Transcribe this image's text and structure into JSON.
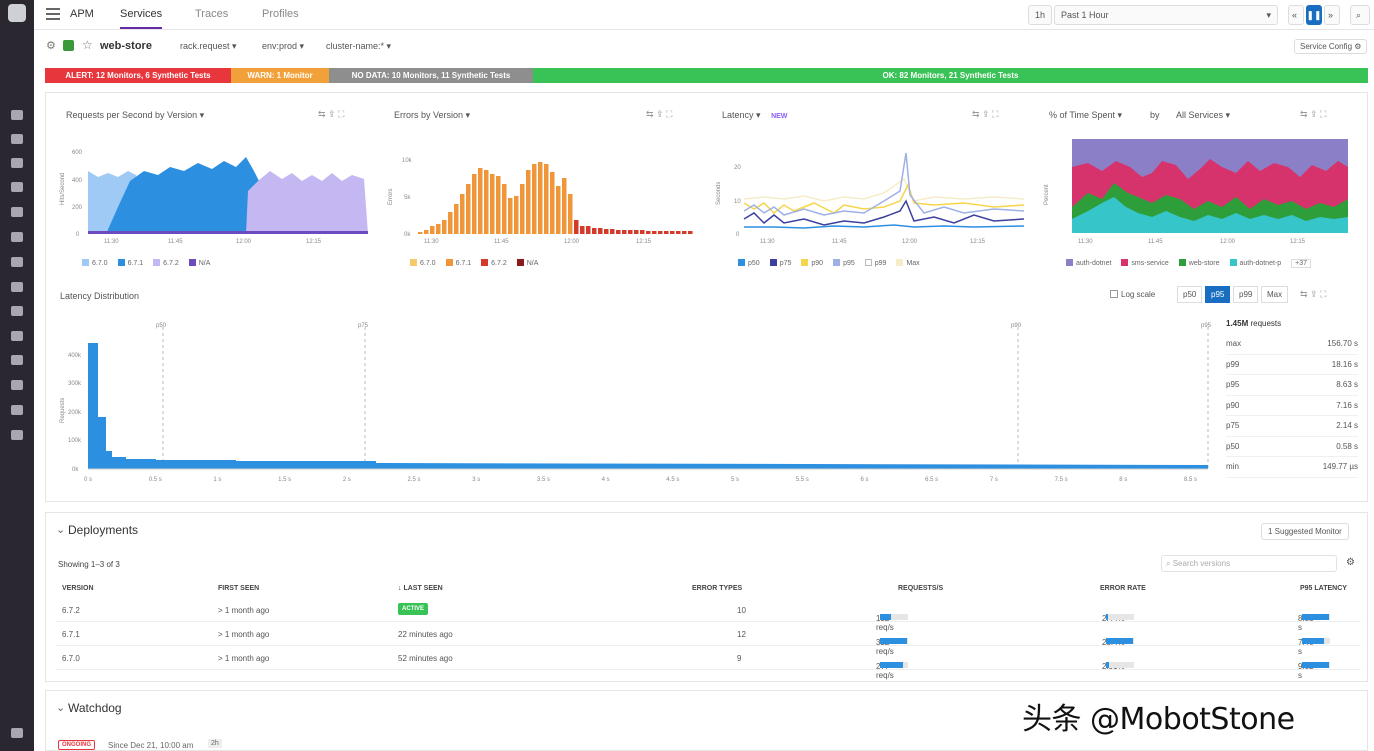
{
  "topbar": {
    "product": "APM",
    "tabs": [
      "Services",
      "Traces",
      "Profiles"
    ],
    "time_short": "1h",
    "time_range": "Past 1 Hour"
  },
  "service": {
    "name": "web-store",
    "filters": [
      "rack.request",
      "env:prod",
      "cluster-name:*"
    ],
    "config_label": "Service Config"
  },
  "status": {
    "alert": "ALERT: 12 Monitors, 6 Synthetic Tests",
    "warn": "WARN: 1 Monitor",
    "nodata": "NO DATA: 10 Monitors, 11 Synthetic Tests",
    "ok": "OK: 82 Monitors, 21 Synthetic Tests",
    "colors": {
      "alert": "#e8363d",
      "warn": "#f2a13a",
      "nodata": "#8e8e8e",
      "ok": "#39c255"
    }
  },
  "charts": {
    "c1": {
      "title": "Requests per Second by Version",
      "ylabel": "Hits/Second",
      "yticks": [
        "600",
        "400",
        "200",
        "0"
      ],
      "xticks": [
        "11:30",
        "11:45",
        "12:00",
        "12:15"
      ],
      "legend": [
        "6.7.0",
        "6.7.1",
        "6.7.2",
        "N/A"
      ],
      "colors": [
        "#9ecaf5",
        "#2d8fe0",
        "#c5b7f2",
        "#6b4bbf"
      ]
    },
    "c2": {
      "title": "Errors by Version",
      "ylabel": "Errors",
      "yticks": [
        "10k",
        "5k",
        "0k"
      ],
      "xticks": [
        "11:30",
        "11:45",
        "12:00",
        "12:15"
      ],
      "legend": [
        "6.7.0",
        "6.7.1",
        "6.7.2",
        "N/A"
      ],
      "colors": [
        "#f7c96a",
        "#f0963a",
        "#d33a2c",
        "#8b1a1a"
      ]
    },
    "c3": {
      "title": "Latency",
      "badge": "NEW",
      "ylabel": "Seconds",
      "yticks": [
        "20",
        "10",
        "0"
      ],
      "xticks": [
        "11:30",
        "11:45",
        "12:00",
        "12:15"
      ],
      "legend": [
        "p50",
        "p75",
        "p90",
        "p95",
        "p99",
        "Max"
      ],
      "colors": [
        "#2d8fe0",
        "#3b3f9e",
        "#f5d54a",
        "#9fb0e6",
        "#ffffff",
        "#f5ecc8"
      ]
    },
    "c4": {
      "title": "% of Time Spent",
      "by": "by",
      "group": "All Services",
      "ylabel": "Percent",
      "xticks": [
        "11:30",
        "11:45",
        "12:00",
        "12:15"
      ],
      "legend": [
        "auth-dotnet",
        "sms-service",
        "web-store",
        "auth-dotnet-p"
      ],
      "more": "+37",
      "colors": [
        "#8b7fc7",
        "#d6336c",
        "#2e9e3a",
        "#36c6c9"
      ]
    }
  },
  "latency_dist": {
    "title": "Latency Distribution",
    "log_scale": "Log scale",
    "percentile_buttons": [
      "p50",
      "p95",
      "p99",
      "Max"
    ],
    "active": "p95",
    "ylabel": "Requests",
    "yticks": [
      "400k",
      "300k",
      "200k",
      "100k",
      "0k"
    ],
    "xticks": [
      "0 s",
      "0.5 s",
      "1 s",
      "1.5 s",
      "2 s",
      "2.5 s",
      "3 s",
      "3.5 s",
      "4 s",
      "4.5 s",
      "5 s",
      "5.5 s",
      "6 s",
      "6.5 s",
      "7 s",
      "7.5 s",
      "8 s",
      "8.5 s"
    ],
    "markers": [
      "p50",
      "p75",
      "p90",
      "p95"
    ],
    "total": "1.45M",
    "total_suffix": "requests",
    "stats": [
      {
        "k": "max",
        "v": "156.70 s"
      },
      {
        "k": "p99",
        "v": "18.16 s"
      },
      {
        "k": "p95",
        "v": "8.63 s"
      },
      {
        "k": "p90",
        "v": "7.16 s"
      },
      {
        "k": "p75",
        "v": "2.14 s"
      },
      {
        "k": "p50",
        "v": "0.58 s"
      },
      {
        "k": "min",
        "v": "149.77 µs"
      }
    ]
  },
  "deployments": {
    "title": "Deployments",
    "suggested": "1 Suggested Monitor",
    "showing": "Showing 1–3 of 3",
    "search_placeholder": "Search versions",
    "headers": [
      "VERSION",
      "FIRST SEEN",
      "↓ LAST SEEN",
      "ERROR TYPES",
      "REQUESTS/S",
      "ERROR RATE",
      "P95 LATENCY"
    ],
    "rows": [
      {
        "version": "6.7.2",
        "first": "> 1 month ago",
        "last": "ACTIVE",
        "errors": "10",
        "req": "132 req/s",
        "req_frac": 0.4,
        "rate": "2.44%",
        "rate_frac": 0.08,
        "p95": "8.85 s",
        "p95_frac": 0.95
      },
      {
        "version": "6.7.1",
        "first": "> 1 month ago",
        "last": "22 minutes ago",
        "errors": "12",
        "req": "322 req/s",
        "req_frac": 0.98,
        "rate": "25.4%",
        "rate_frac": 0.98,
        "p95": "7.40 s",
        "p95_frac": 0.8
      },
      {
        "version": "6.7.0",
        "first": "> 1 month ago",
        "last": "52 minutes ago",
        "errors": "9",
        "req": "277 req/s",
        "req_frac": 0.82,
        "rate": "2.91%",
        "rate_frac": 0.1,
        "p95": "9.02 s",
        "p95_frac": 0.98
      }
    ]
  },
  "watchdog": {
    "title": "Watchdog",
    "badge": "ONGOING",
    "since": "Since Dec 21, 10:00 am",
    "duration": "2h"
  },
  "watermark": "头条 @MobotStone"
}
